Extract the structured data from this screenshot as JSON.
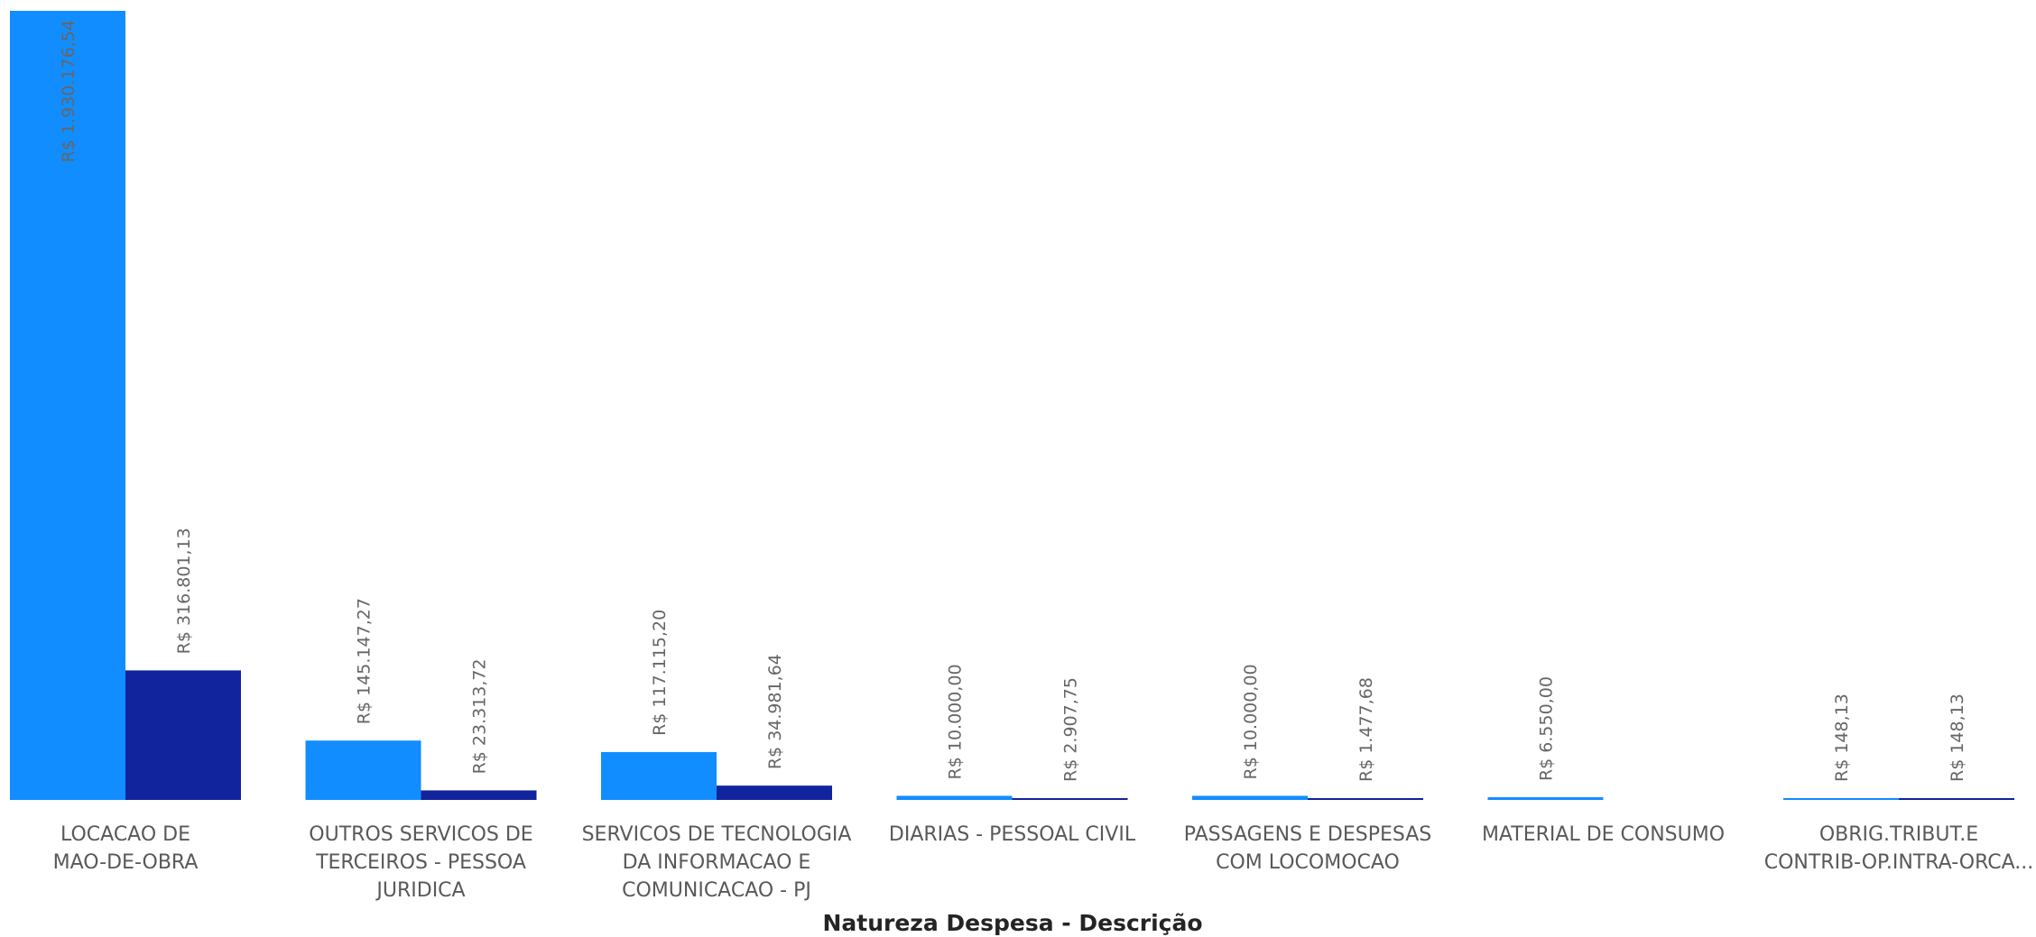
{
  "chart_data": {
    "type": "bar",
    "title": "",
    "xlabel": "Natureza Despesa - Descrição",
    "ylabel": "",
    "ylim": [
      0,
      1930176.54
    ],
    "grid": false,
    "colors": {
      "series1": "#118DFF",
      "series2": "#12239E"
    },
    "categories": [
      [
        "LOCACAO DE",
        "MAO-DE-OBRA"
      ],
      [
        "OUTROS SERVICOS DE",
        "TERCEIROS - PESSOA",
        "JURIDICA"
      ],
      [
        "SERVICOS DE TECNOLOGIA",
        "DA INFORMACAO E",
        "COMUNICACAO - PJ"
      ],
      [
        "DIARIAS - PESSOAL CIVIL"
      ],
      [
        "PASSAGENS E DESPESAS",
        "COM LOCOMOCAO"
      ],
      [
        "MATERIAL DE CONSUMO"
      ],
      [
        "OBRIG.TRIBUT.E",
        "CONTRIB-OP.INTRA-ORCA..."
      ]
    ],
    "series": [
      {
        "values": [
          1930176.54,
          145147.27,
          117115.2,
          10000.0,
          10000.0,
          6550.0,
          148.13
        ],
        "labels": [
          "R$ 1.930.176,54",
          "R$ 145.147,27",
          "R$ 117.115,20",
          "R$ 10.000,00",
          "R$ 10.000,00",
          "R$ 6.550,00",
          "R$ 148,13"
        ]
      },
      {
        "values": [
          316801.13,
          23313.72,
          34981.64,
          2907.75,
          1477.68,
          null,
          148.13
        ],
        "labels": [
          "R$ 316.801,13",
          "R$ 23.313,72",
          "R$ 34.981,64",
          "R$ 2.907,75",
          "R$ 1.477,68",
          null,
          "R$ 148,13"
        ]
      }
    ]
  }
}
